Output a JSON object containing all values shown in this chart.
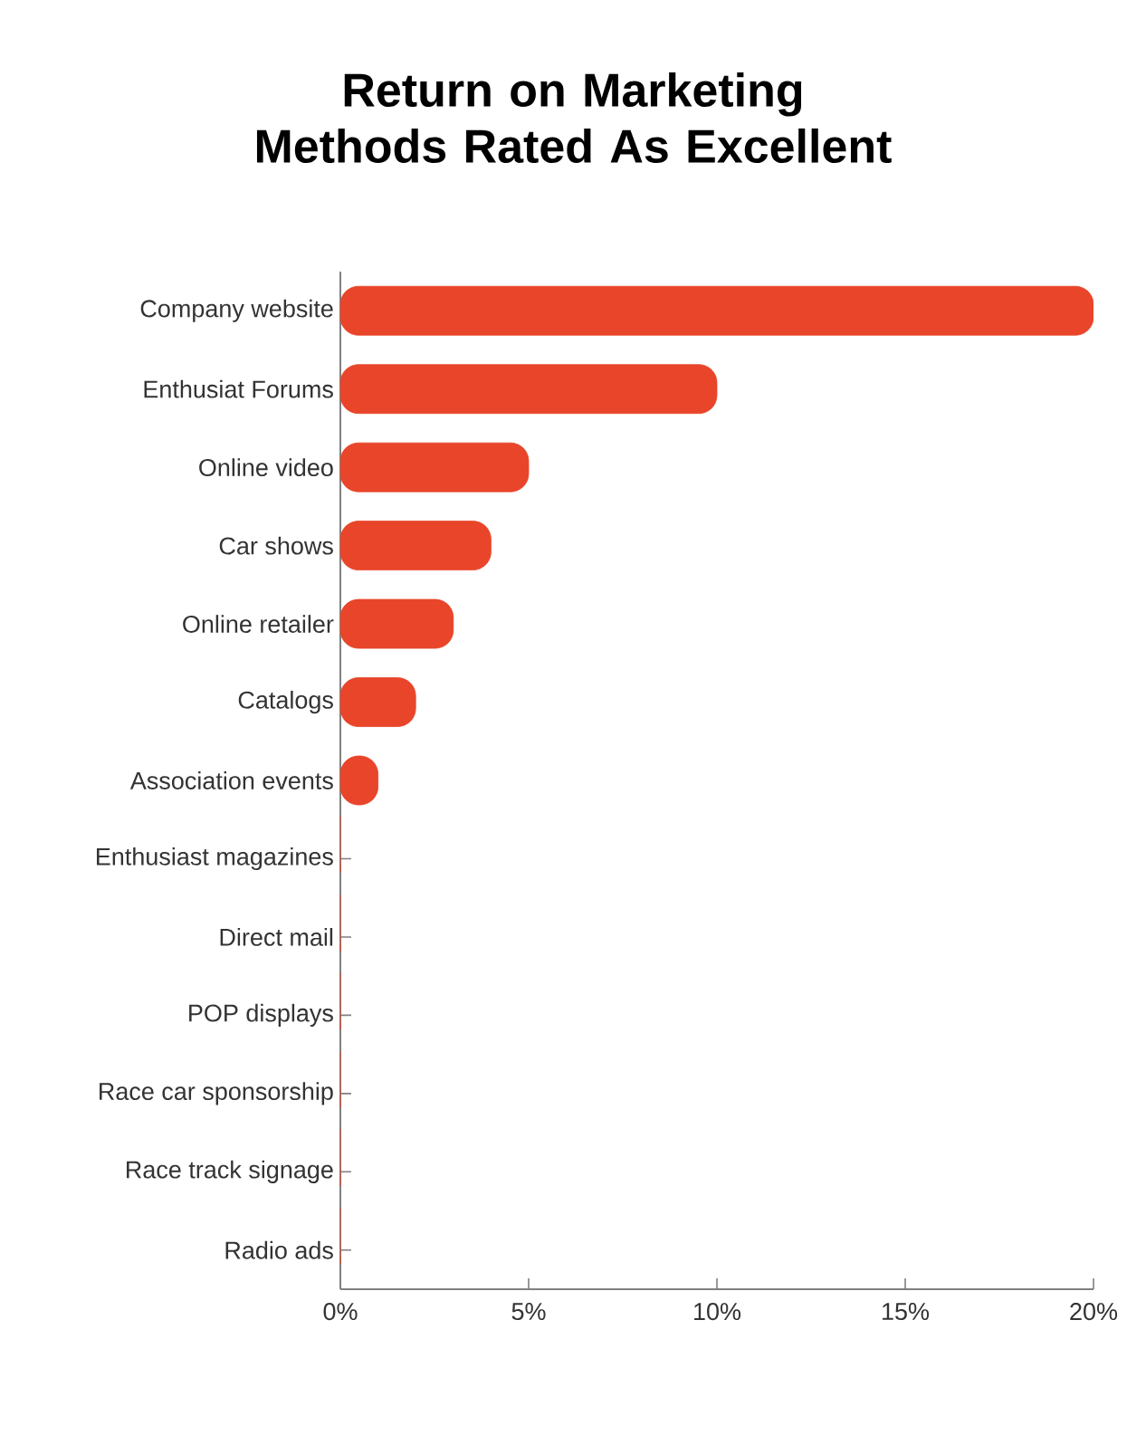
{
  "chart_data": {
    "type": "bar",
    "orientation": "horizontal",
    "title": "Return on Marketing Methods Rated As Excellent",
    "categories": [
      "Company website",
      "Enthusiat Forums",
      "Online video",
      "Car shows",
      "Online retailer",
      "Catalogs",
      "Association events",
      "Enthusiast magazines",
      "Direct mail",
      "POP displays",
      "Race car sponsorship",
      "Race track signage",
      "Radio ads"
    ],
    "values": [
      20,
      10,
      5,
      4,
      3,
      2,
      1,
      0,
      0,
      0,
      0,
      0,
      0
    ],
    "color": "#e8452a",
    "xlim": [
      0,
      20
    ],
    "xticks": [
      {
        "value": 0,
        "label": "0%"
      },
      {
        "value": 5,
        "label": "5%"
      },
      {
        "value": 10,
        "label": "10%"
      },
      {
        "value": 15,
        "label": "15%"
      },
      {
        "value": 20,
        "label": "20%"
      }
    ],
    "grid": false
  }
}
